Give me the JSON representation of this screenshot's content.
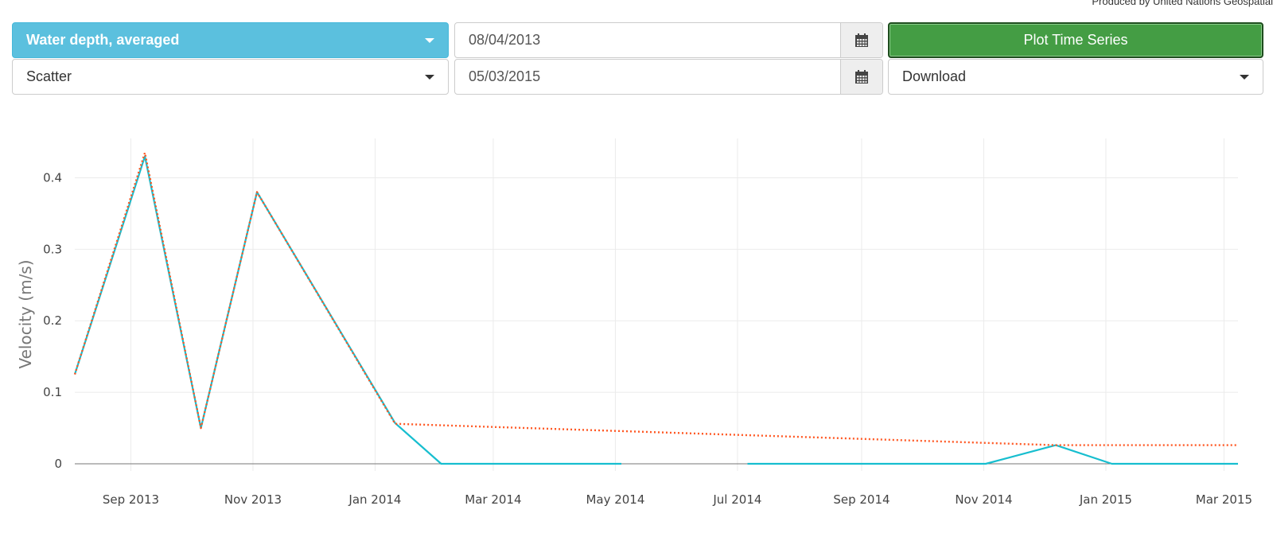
{
  "credit": "Produced by United Nations Geospatial",
  "controls": {
    "variable": "Water depth, averaged",
    "plot_type": "Scatter",
    "start_date": "08/04/2013",
    "end_date": "05/03/2015",
    "plot_button": "Plot Time Series",
    "download": "Download"
  },
  "icons": {
    "calendar": "calendar-icon",
    "caret": "caret-down-icon"
  },
  "colors": {
    "variable_select": "#5bc0de",
    "plot_button": "#449d44",
    "solid_series": "#17becf",
    "dotted_series": "#ff5722"
  },
  "chart_data": {
    "type": "line",
    "ylabel": "Velocity (m/s)",
    "xlabel": "",
    "title": "",
    "grid": true,
    "xlim": [
      "2013-08-04",
      "2015-03-08"
    ],
    "ylim": [
      -0.01,
      0.455
    ],
    "x_ticks": [
      "Sep 2013",
      "Nov 2013",
      "Jan 2014",
      "Mar 2014",
      "May 2014",
      "Jul 2014",
      "Sep 2014",
      "Nov 2014",
      "Jan 2015",
      "Mar 2015"
    ],
    "x_tick_dates": [
      "2013-09-01",
      "2013-11-01",
      "2014-01-01",
      "2014-03-01",
      "2014-05-01",
      "2014-07-01",
      "2014-09-01",
      "2014-11-01",
      "2015-01-01",
      "2015-03-01"
    ],
    "y_ticks": [
      0,
      0.1,
      0.2,
      0.3,
      0.4
    ],
    "y_tick_labels": [
      "0",
      "0.1",
      "0.2",
      "0.3",
      "0.4"
    ],
    "series": [
      {
        "style": "solid",
        "color": "#17becf",
        "segments": [
          [
            {
              "x": "2013-08-04",
              "y": 0.125
            },
            {
              "x": "2013-09-08",
              "y": 0.43
            },
            {
              "x": "2013-10-06",
              "y": 0.05
            },
            {
              "x": "2013-11-03",
              "y": 0.38
            },
            {
              "x": "2014-01-11",
              "y": 0.057
            },
            {
              "x": "2014-02-03",
              "y": 0
            },
            {
              "x": "2014-05-04",
              "y": 0
            }
          ],
          [
            {
              "x": "2014-07-06",
              "y": 0
            },
            {
              "x": "2014-11-02",
              "y": 0
            },
            {
              "x": "2014-12-07",
              "y": 0.026
            },
            {
              "x": "2015-01-04",
              "y": 0
            },
            {
              "x": "2015-03-08",
              "y": 0
            }
          ]
        ]
      },
      {
        "style": "dotted",
        "color": "#ff5722",
        "segments": [
          [
            {
              "x": "2013-08-04",
              "y": 0.125
            },
            {
              "x": "2013-09-08",
              "y": 0.435
            },
            {
              "x": "2013-10-06",
              "y": 0.05
            },
            {
              "x": "2013-11-03",
              "y": 0.38
            },
            {
              "x": "2014-01-11",
              "y": 0.056
            },
            {
              "x": "2014-12-07",
              "y": 0.026
            },
            {
              "x": "2015-03-08",
              "y": 0.026
            }
          ]
        ]
      }
    ]
  }
}
